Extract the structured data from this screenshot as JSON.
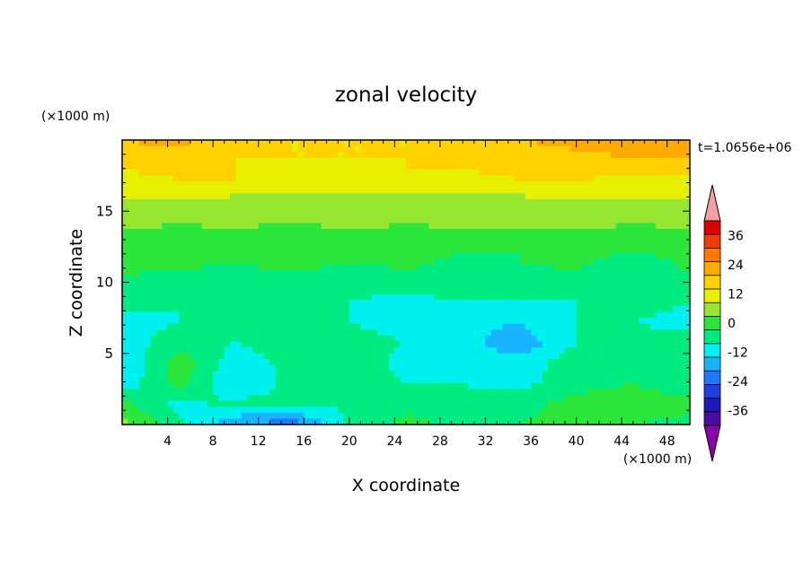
{
  "chart_data": {
    "type": "heatmap",
    "title": "zonal velocity",
    "xlabel": "X coordinate",
    "ylabel": "Z coordinate",
    "x_unit": "(×1000 m)",
    "y_unit": "(×1000 m)",
    "time_label": "t=1.0656e+06",
    "xlim": [
      0,
      50
    ],
    "ylim": [
      0,
      20
    ],
    "x_ticks": [
      4,
      8,
      12,
      16,
      20,
      24,
      28,
      32,
      36,
      40,
      44,
      48
    ],
    "y_ticks": [
      5,
      10,
      15
    ],
    "colorbar": {
      "levels": [
        -42,
        -36,
        -30,
        -24,
        -18,
        -12,
        -6,
        0,
        6,
        12,
        18,
        24,
        30,
        36,
        42
      ],
      "tick_labels": [
        36,
        24,
        12,
        0,
        -12,
        -24,
        -36
      ],
      "colors": [
        "#8b00a8",
        "#4b0aa0",
        "#1a1ab4",
        "#1e3ee6",
        "#1f78ff",
        "#19b4ff",
        "#00f0f0",
        "#00eb82",
        "#2de63c",
        "#96e632",
        "#e6f000",
        "#ffd200",
        "#ffaa00",
        "#ff7800",
        "#f03c0a",
        "#dc0000",
        "#f5a0a0"
      ]
    },
    "z_grid_note": "zonal velocity values, rows from z=0 (bottom) to z=20 (top), 11 columns x=0..50",
    "z_grid": [
      [
        8,
        -4,
        -18,
        -22,
        -4,
        2,
        -2,
        0,
        2,
        0,
        -2
      ],
      [
        2,
        -8,
        -4,
        -4,
        -6,
        -2,
        -4,
        -2,
        2,
        4,
        2
      ],
      [
        -10,
        2,
        -12,
        -4,
        -2,
        -6,
        -6,
        -8,
        -2,
        0,
        -4
      ],
      [
        -12,
        4,
        -10,
        -4,
        -2,
        -8,
        -8,
        -10,
        -2,
        -4,
        -6
      ],
      [
        -10,
        -2,
        -6,
        -2,
        -4,
        -6,
        -10,
        -16,
        -6,
        -4,
        -2
      ],
      [
        -8,
        -6,
        -4,
        -6,
        -6,
        -8,
        -10,
        -12,
        -6,
        -6,
        -8
      ],
      [
        -4,
        -6,
        -6,
        -4,
        -6,
        -8,
        -6,
        -6,
        -6,
        -4,
        -6
      ],
      [
        -2,
        -4,
        -2,
        -2,
        -4,
        -4,
        -2,
        -2,
        -4,
        -4,
        -2
      ],
      [
        4,
        2,
        0,
        2,
        0,
        2,
        -2,
        0,
        2,
        -4,
        2
      ],
      [
        4,
        4,
        2,
        2,
        4,
        4,
        2,
        0,
        4,
        4,
        2
      ],
      [
        8,
        6,
        8,
        6,
        8,
        6,
        8,
        8,
        8,
        6,
        8
      ],
      [
        12,
        12,
        10,
        10,
        10,
        10,
        10,
        10,
        12,
        12,
        12
      ],
      [
        16,
        18,
        18,
        16,
        16,
        18,
        16,
        18,
        18,
        16,
        16
      ],
      [
        20,
        20,
        18,
        18,
        18,
        18,
        20,
        20,
        22,
        24,
        24
      ],
      [
        24,
        26,
        20,
        18,
        18,
        18,
        22,
        24,
        26,
        26,
        24
      ]
    ]
  }
}
